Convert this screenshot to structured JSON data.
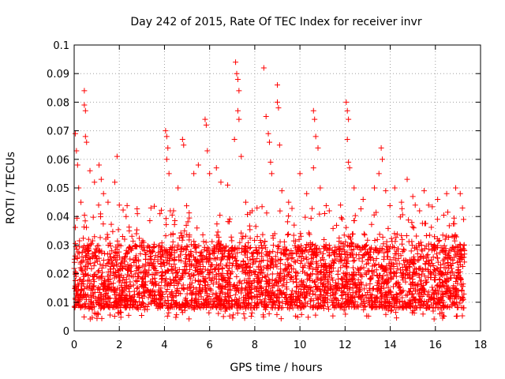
{
  "chart_data": {
    "type": "scatter",
    "title": "Day 242 of 2015, Rate Of TEC Index for receiver invr",
    "xlabel": "GPS time / hours",
    "ylabel": "ROTI / TECUs",
    "xlim": [
      0,
      18
    ],
    "ylim": [
      0,
      0.1
    ],
    "xticks": [
      0,
      2,
      4,
      6,
      8,
      10,
      12,
      14,
      16,
      18
    ],
    "yticks": [
      0,
      0.01,
      0.02,
      0.03,
      0.04,
      0.05,
      0.06,
      0.07,
      0.08,
      0.09,
      0.1
    ],
    "xtick_labels": [
      "0",
      "2",
      "4",
      "6",
      "8",
      "10",
      "12",
      "14",
      "16",
      "18"
    ],
    "ytick_labels": [
      "0",
      "0.01",
      "0.02",
      "0.03",
      "0.04",
      "0.05",
      "0.06",
      "0.07",
      "0.08",
      "0.09",
      "0.1"
    ],
    "grid": true,
    "marker": "+",
    "color": "#ff0000",
    "series": [
      {
        "name": "ROTI",
        "points": [
          [
            0.05,
            0.069
          ],
          [
            0.1,
            0.063
          ],
          [
            0.15,
            0.058
          ],
          [
            0.2,
            0.05
          ],
          [
            0.3,
            0.045
          ],
          [
            0.45,
            0.084
          ],
          [
            0.45,
            0.079
          ],
          [
            0.5,
            0.077
          ],
          [
            0.5,
            0.068
          ],
          [
            0.55,
            0.066
          ],
          [
            0.7,
            0.056
          ],
          [
            0.9,
            0.052
          ],
          [
            1.1,
            0.058
          ],
          [
            1.2,
            0.053
          ],
          [
            1.3,
            0.048
          ],
          [
            1.5,
            0.045
          ],
          [
            1.9,
            0.061
          ],
          [
            1.8,
            0.052
          ],
          [
            2.0,
            0.044
          ],
          [
            2.3,
            0.04
          ],
          [
            2.8,
            0.041
          ],
          [
            3.4,
            0.043
          ],
          [
            3.8,
            0.041
          ],
          [
            4.05,
            0.07
          ],
          [
            4.1,
            0.068
          ],
          [
            4.15,
            0.064
          ],
          [
            4.1,
            0.06
          ],
          [
            4.2,
            0.055
          ],
          [
            4.6,
            0.05
          ],
          [
            4.8,
            0.067
          ],
          [
            4.85,
            0.065
          ],
          [
            5.3,
            0.055
          ],
          [
            5.5,
            0.058
          ],
          [
            5.8,
            0.074
          ],
          [
            5.85,
            0.072
          ],
          [
            5.9,
            0.063
          ],
          [
            6.0,
            0.055
          ],
          [
            6.3,
            0.057
          ],
          [
            6.5,
            0.052
          ],
          [
            6.8,
            0.051
          ],
          [
            7.15,
            0.094
          ],
          [
            7.2,
            0.09
          ],
          [
            7.25,
            0.088
          ],
          [
            7.3,
            0.084
          ],
          [
            7.25,
            0.077
          ],
          [
            7.3,
            0.074
          ],
          [
            7.1,
            0.067
          ],
          [
            7.4,
            0.061
          ],
          [
            7.6,
            0.045
          ],
          [
            8.1,
            0.043
          ],
          [
            8.4,
            0.092
          ],
          [
            8.5,
            0.075
          ],
          [
            8.6,
            0.069
          ],
          [
            8.65,
            0.066
          ],
          [
            8.7,
            0.059
          ],
          [
            8.75,
            0.055
          ],
          [
            9.0,
            0.086
          ],
          [
            9.0,
            0.08
          ],
          [
            9.05,
            0.078
          ],
          [
            9.1,
            0.065
          ],
          [
            9.2,
            0.049
          ],
          [
            9.5,
            0.045
          ],
          [
            10.0,
            0.055
          ],
          [
            10.3,
            0.048
          ],
          [
            10.6,
            0.077
          ],
          [
            10.65,
            0.074
          ],
          [
            10.7,
            0.068
          ],
          [
            10.8,
            0.064
          ],
          [
            10.6,
            0.057
          ],
          [
            10.9,
            0.05
          ],
          [
            11.3,
            0.042
          ],
          [
            11.8,
            0.044
          ],
          [
            12.05,
            0.08
          ],
          [
            12.1,
            0.077
          ],
          [
            12.15,
            0.074
          ],
          [
            12.1,
            0.067
          ],
          [
            12.15,
            0.059
          ],
          [
            12.2,
            0.057
          ],
          [
            12.4,
            0.05
          ],
          [
            12.8,
            0.046
          ],
          [
            13.3,
            0.05
          ],
          [
            13.6,
            0.064
          ],
          [
            13.65,
            0.06
          ],
          [
            13.5,
            0.055
          ],
          [
            13.8,
            0.049
          ],
          [
            14.2,
            0.05
          ],
          [
            14.5,
            0.045
          ],
          [
            14.75,
            0.053
          ],
          [
            15.0,
            0.047
          ],
          [
            15.3,
            0.042
          ],
          [
            15.5,
            0.049
          ],
          [
            15.7,
            0.044
          ],
          [
            16.1,
            0.046
          ],
          [
            16.5,
            0.048
          ],
          [
            16.9,
            0.05
          ],
          [
            17.1,
            0.048
          ],
          [
            17.2,
            0.043
          ],
          [
            17.25,
            0.039
          ]
        ]
      }
    ],
    "background_band": {
      "description": "dense noise field between roughly 0.006 and 0.04 across 0-17.3 h",
      "x_range": [
        0.0,
        17.3
      ],
      "y_range": [
        0.004,
        0.04
      ],
      "count": 3400
    }
  }
}
